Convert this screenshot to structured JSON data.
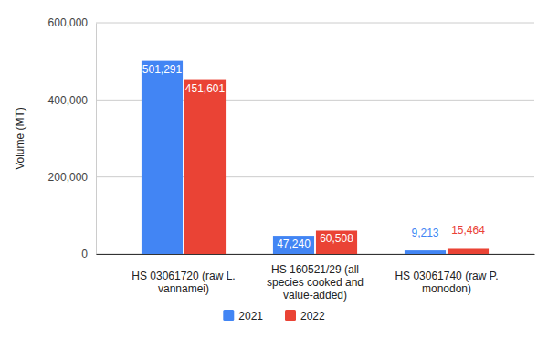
{
  "chart_data": {
    "type": "bar",
    "y_label": "Volume (MT)",
    "categories": [
      "HS 03061720 (raw L. vannamei)",
      "HS 160521/29 (all species cooked and value-added)",
      "HS 03061740 (raw P. monodon)"
    ],
    "series": [
      {
        "name": "2021",
        "color": "#4285f4",
        "values": [
          501291,
          47240,
          9213
        ],
        "value_labels": [
          "501,291",
          "47,240",
          "9,213"
        ]
      },
      {
        "name": "2022",
        "color": "#ea4335",
        "values": [
          451601,
          60508,
          15464
        ],
        "value_labels": [
          "451,601",
          "60,508",
          "15,464"
        ]
      }
    ],
    "ylim": [
      0,
      600000
    ],
    "yticks": [
      0,
      {
        "value": 200000,
        "label": "200,000"
      },
      {
        "value": 400000,
        "label": "400,000"
      },
      {
        "value": 600000,
        "label": "600,000"
      }
    ],
    "grid": true,
    "data_labels": true,
    "legend": "bottom"
  }
}
